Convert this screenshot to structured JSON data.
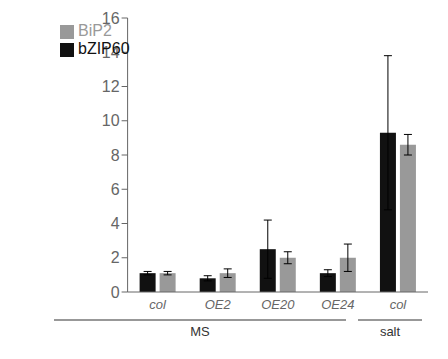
{
  "chart_data": {
    "type": "bar",
    "categories": [
      "col",
      "OE2",
      "OE20",
      "OE24",
      "col"
    ],
    "groups": [
      {
        "label": "MS",
        "count": 4
      },
      {
        "label": "salt",
        "count": 1
      }
    ],
    "series": [
      {
        "name": "bZIP60",
        "color": "#111111",
        "values": [
          1.1,
          0.8,
          2.5,
          1.1,
          9.3
        ],
        "errors": [
          0.1,
          0.15,
          1.7,
          0.2,
          4.5
        ]
      },
      {
        "name": "BiP2",
        "color": "#999999",
        "values": [
          1.1,
          1.1,
          2.0,
          2.0,
          8.6
        ],
        "errors": [
          0.1,
          0.25,
          0.35,
          0.8,
          0.6
        ]
      }
    ],
    "ylim": [
      0,
      16
    ],
    "yticks": [
      0,
      2,
      4,
      6,
      8,
      10,
      12,
      14,
      16
    ],
    "grid": false,
    "legend": "upper left"
  }
}
